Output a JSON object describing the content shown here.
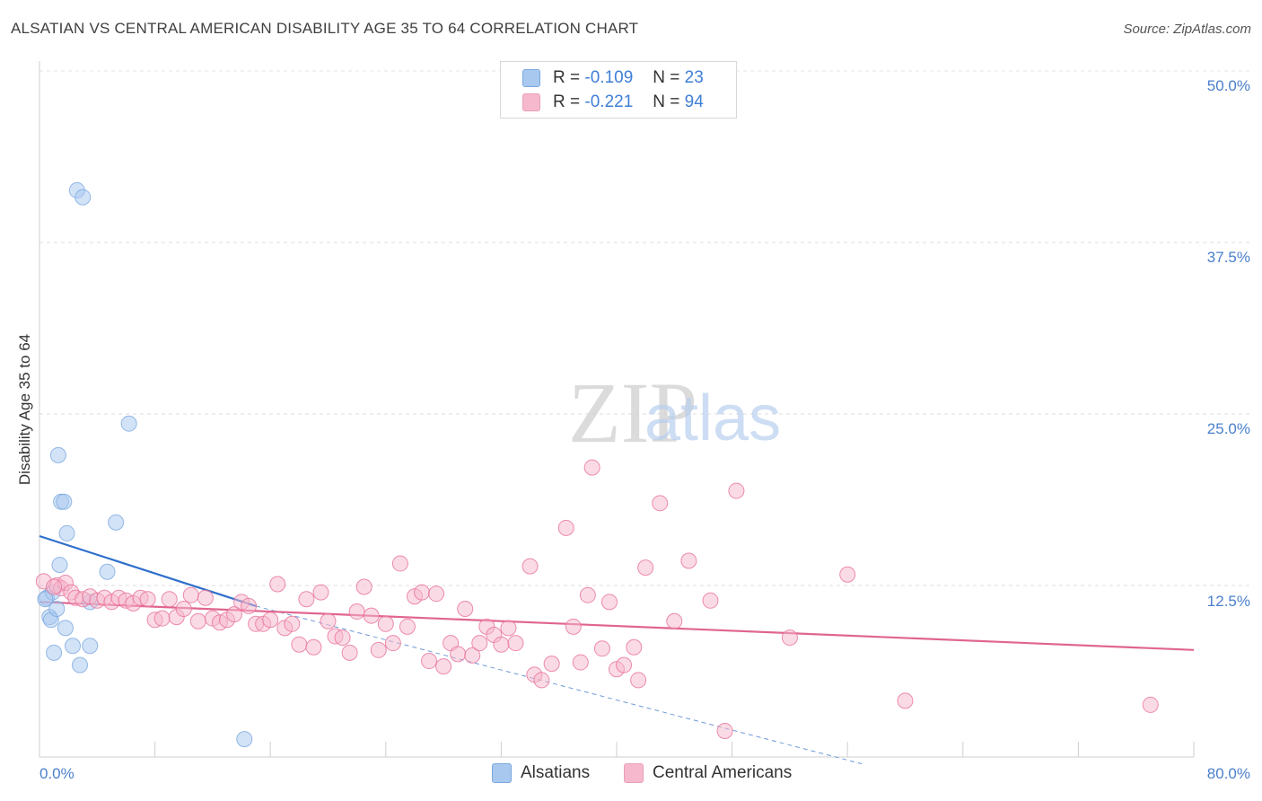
{
  "title": "ALSATIAN VS CENTRAL AMERICAN DISABILITY AGE 35 TO 64 CORRELATION CHART",
  "source": "Source: ZipAtlas.com",
  "watermark": {
    "zip": "ZIP",
    "atlas": "atlas"
  },
  "legend_top": [
    {
      "r_label": "R =",
      "r_value": "-0.109",
      "n_label": "N =",
      "n_value": "23",
      "color": "#a8c8f0"
    },
    {
      "r_label": "R =",
      "r_value": "-0.221",
      "n_label": "N =",
      "n_value": "94",
      "color": "#f6b8cc"
    }
  ],
  "legend_bottom": [
    {
      "label": "Alsatians",
      "color": "#a8c8f0"
    },
    {
      "label": "Central Americans",
      "color": "#f6b8cc"
    }
  ],
  "chart_data": {
    "type": "scatter",
    "title": "ALSATIAN VS CENTRAL AMERICAN DISABILITY AGE 35 TO 64 CORRELATION CHART",
    "xlabel": "",
    "ylabel": "Disability Age 35 to 64",
    "xlim": [
      0,
      80
    ],
    "ylim": [
      0,
      50
    ],
    "x_tick_labels": [
      "0.0%",
      "80.0%"
    ],
    "y_tick_labels": [
      "12.5%",
      "25.0%",
      "37.5%",
      "50.0%"
    ],
    "y_ticks": [
      12.5,
      25.0,
      37.5,
      50.0
    ],
    "grid": true,
    "series": [
      {
        "name": "Alsatians",
        "color": "#7aa8e0",
        "fill": "#a8c8f0",
        "points": [
          [
            2.6,
            41.3
          ],
          [
            3.0,
            40.8
          ],
          [
            0.5,
            11.6
          ],
          [
            0.7,
            10.2
          ],
          [
            0.9,
            12.0
          ],
          [
            0.8,
            10.0
          ],
          [
            1.2,
            10.8
          ],
          [
            1.0,
            7.6
          ],
          [
            1.4,
            14.0
          ],
          [
            1.5,
            18.6
          ],
          [
            1.7,
            18.6
          ],
          [
            1.9,
            16.3
          ],
          [
            1.8,
            9.4
          ],
          [
            2.3,
            8.1
          ],
          [
            2.8,
            6.7
          ],
          [
            3.5,
            8.1
          ],
          [
            3.5,
            11.3
          ],
          [
            4.7,
            13.5
          ],
          [
            5.3,
            17.1
          ],
          [
            6.2,
            24.3
          ],
          [
            1.3,
            22.0
          ],
          [
            14.2,
            1.3
          ],
          [
            0.4,
            11.5
          ]
        ],
        "trend": {
          "x0": 0,
          "y0": 16.1,
          "x1": 15.0,
          "y1": 11.0,
          "dash_x1": 57.0,
          "dash_y1": -0.5
        }
      },
      {
        "name": "Central Americans",
        "color": "#e8709a",
        "fill": "#f6b8cc",
        "points": [
          [
            0.3,
            12.8
          ],
          [
            1.2,
            12.5
          ],
          [
            1.5,
            12.3
          ],
          [
            1.8,
            12.7
          ],
          [
            2.2,
            12.0
          ],
          [
            2.5,
            11.6
          ],
          [
            3.0,
            11.5
          ],
          [
            3.5,
            11.7
          ],
          [
            4.0,
            11.4
          ],
          [
            4.5,
            11.6
          ],
          [
            5.0,
            11.3
          ],
          [
            5.5,
            11.6
          ],
          [
            6.0,
            11.4
          ],
          [
            6.5,
            11.2
          ],
          [
            7.0,
            11.6
          ],
          [
            7.5,
            11.5
          ],
          [
            8.0,
            10.0
          ],
          [
            8.5,
            10.1
          ],
          [
            9.0,
            11.5
          ],
          [
            9.5,
            10.2
          ],
          [
            10.0,
            10.8
          ],
          [
            10.5,
            11.8
          ],
          [
            11.0,
            9.9
          ],
          [
            11.5,
            11.6
          ],
          [
            12.0,
            10.1
          ],
          [
            12.5,
            9.8
          ],
          [
            13.0,
            10.0
          ],
          [
            13.5,
            10.4
          ],
          [
            14.0,
            11.3
          ],
          [
            14.5,
            11.0
          ],
          [
            15.0,
            9.7
          ],
          [
            15.5,
            9.7
          ],
          [
            16.0,
            10.0
          ],
          [
            16.5,
            12.6
          ],
          [
            17.0,
            9.4
          ],
          [
            17.5,
            9.7
          ],
          [
            18.0,
            8.2
          ],
          [
            18.5,
            11.5
          ],
          [
            19.0,
            8.0
          ],
          [
            19.5,
            12.0
          ],
          [
            20.0,
            9.9
          ],
          [
            20.5,
            8.8
          ],
          [
            21.0,
            8.7
          ],
          [
            21.5,
            7.6
          ],
          [
            22.0,
            10.6
          ],
          [
            22.5,
            12.4
          ],
          [
            23.0,
            10.3
          ],
          [
            23.5,
            7.8
          ],
          [
            24.0,
            9.7
          ],
          [
            24.5,
            8.3
          ],
          [
            25.0,
            14.1
          ],
          [
            25.5,
            9.5
          ],
          [
            26.0,
            11.7
          ],
          [
            26.5,
            12.0
          ],
          [
            27.0,
            7.0
          ],
          [
            27.5,
            11.9
          ],
          [
            28.0,
            6.6
          ],
          [
            28.5,
            8.3
          ],
          [
            29.0,
            7.5
          ],
          [
            29.5,
            10.8
          ],
          [
            30.0,
            7.4
          ],
          [
            30.5,
            8.3
          ],
          [
            31.0,
            9.5
          ],
          [
            31.5,
            8.9
          ],
          [
            32.0,
            8.2
          ],
          [
            32.5,
            9.4
          ],
          [
            33.0,
            8.3
          ],
          [
            34.0,
            13.9
          ],
          [
            34.3,
            6.0
          ],
          [
            34.8,
            5.6
          ],
          [
            35.5,
            6.8
          ],
          [
            36.5,
            16.7
          ],
          [
            37.0,
            9.5
          ],
          [
            37.5,
            6.9
          ],
          [
            38.0,
            11.8
          ],
          [
            38.3,
            21.1
          ],
          [
            39.0,
            7.9
          ],
          [
            40.0,
            6.4
          ],
          [
            40.5,
            6.7
          ],
          [
            41.2,
            8.0
          ],
          [
            41.5,
            5.6
          ],
          [
            42.0,
            13.8
          ],
          [
            43.0,
            18.5
          ],
          [
            44.0,
            9.9
          ],
          [
            45.0,
            14.3
          ],
          [
            46.5,
            11.4
          ],
          [
            47.5,
            1.9
          ],
          [
            48.3,
            19.4
          ],
          [
            52.0,
            8.7
          ],
          [
            56.0,
            13.3
          ],
          [
            60.0,
            4.1
          ],
          [
            77.0,
            3.8
          ],
          [
            39.5,
            11.3
          ],
          [
            1.0,
            12.4
          ]
        ],
        "trend": {
          "x0": 0,
          "y0": 11.3,
          "x1": 80,
          "y1": 7.8
        }
      }
    ]
  }
}
